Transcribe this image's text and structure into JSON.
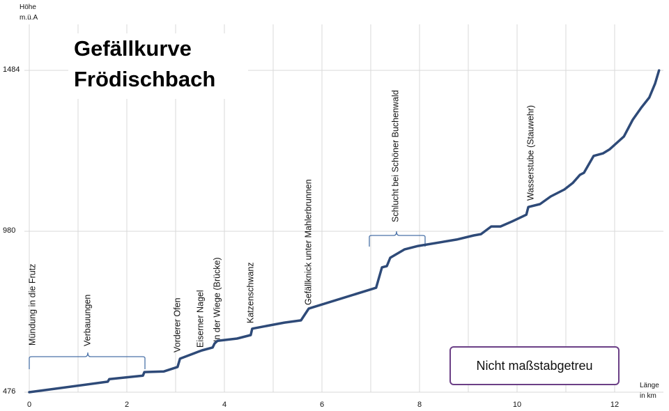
{
  "chart_data": {
    "type": "line",
    "title": "Gefällkurve Frödischbach",
    "y_label": "Höhe m.ü.A",
    "x_label": "Länge in km",
    "note": "Nicht maßstabgetreu",
    "color": "#2e4a78",
    "grid": true,
    "x": [
      0,
      1.61,
      1.64,
      2.33,
      2.36,
      2.76,
      3.04,
      3.09,
      3.47,
      3.54,
      3.76,
      3.8,
      3.86,
      4.26,
      4.54,
      4.57,
      5.23,
      5.57,
      5.73,
      7.11,
      7.23,
      7.33,
      7.4,
      7.69,
      7.97,
      8.76,
      9.11,
      9.26,
      9.47,
      9.66,
      9.9,
      10.19,
      10.23,
      10.47,
      10.69,
      10.97,
      11.14,
      11.29,
      11.37,
      11.57,
      11.76,
      11.9,
      12.19,
      12.37,
      12.54,
      12.71,
      12.83,
      12.91
    ],
    "values": [
      476,
      509,
      517,
      528,
      539,
      541,
      555,
      581,
      603,
      607,
      616,
      629,
      637,
      644,
      655,
      675,
      694,
      701,
      738,
      803,
      867,
      871,
      897,
      923,
      934,
      954,
      967,
      971,
      995,
      995,
      1011,
      1032,
      1056,
      1065,
      1089,
      1111,
      1131,
      1157,
      1163,
      1216,
      1224,
      1237,
      1277,
      1329,
      1366,
      1399,
      1443,
      1484
    ],
    "xlim": [
      0,
      13
    ],
    "ylim": [
      476,
      1628
    ],
    "xticks": [
      0,
      2,
      4,
      6,
      8,
      10,
      12
    ],
    "xminor": [
      1,
      3,
      5,
      7,
      9,
      11
    ],
    "yticks": [
      476,
      980,
      1484
    ],
    "annotations": [
      "Mündung in die Frutz",
      "Verbauungen",
      "Vorderer Ofen",
      "Eiserner Nagel",
      "In der Wiege (Brücke)",
      "Katzenschwanz",
      "Gefällknick unter Mahlerbrunnen",
      "Schlucht bei Schöner Buchenwald",
      "Wasserstube (Stauwehr)"
    ]
  }
}
